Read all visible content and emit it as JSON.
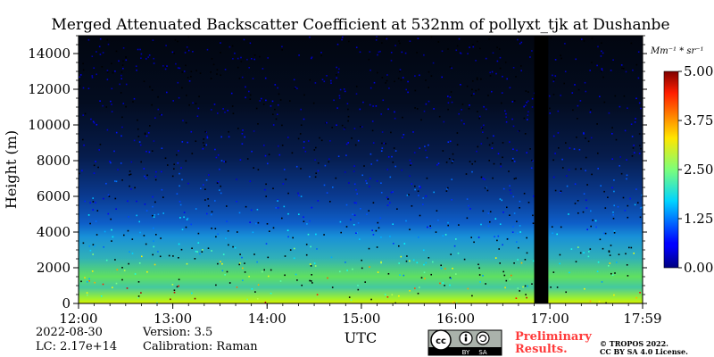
{
  "chart_data": {
    "type": "heatmap",
    "title": "Merged Attenuated Backscatter Coefficient at 532nm of pollyxt_tjk at Dushanbe",
    "xlabel": "UTC",
    "ylabel": "Height (m)",
    "x_range": [
      "12:00",
      "17:59"
    ],
    "x_ticks": [
      "12:00",
      "13:00",
      "14:00",
      "15:00",
      "16:00",
      "17:00",
      "17:59"
    ],
    "ylim": [
      0,
      15000
    ],
    "y_ticks": [
      0,
      2000,
      4000,
      6000,
      8000,
      10000,
      12000,
      14000
    ],
    "colorbar": {
      "unit": "Mm⁻¹ * sr⁻¹",
      "range": [
        0.0,
        5.0
      ],
      "ticks": [
        "0.00",
        "1.25",
        "2.50",
        "3.75",
        "5.00"
      ],
      "colormap": "jet"
    },
    "data_gap": {
      "start": "16:50",
      "end": "16:59"
    },
    "profile_summary": [
      {
        "height_m": 250,
        "value": 2.9
      },
      {
        "height_m": 800,
        "value": 2.4
      },
      {
        "height_m": 1500,
        "value": 2.0
      },
      {
        "height_m": 2500,
        "value": 1.8
      },
      {
        "height_m": 3500,
        "value": 1.1
      },
      {
        "height_m": 5000,
        "value": 0.9
      },
      {
        "height_m": 7000,
        "value": 0.6
      },
      {
        "height_m": 10000,
        "value": 0.35
      },
      {
        "height_m": 14000,
        "value": 0.2
      }
    ]
  },
  "info": {
    "date": "2022-08-30",
    "lc": "LC: 2.17e+14",
    "version": "Version: 3.5",
    "calibration": "Calibration: Raman",
    "preliminary_line1": "Preliminary",
    "preliminary_line2": "Results.",
    "copyright_line1": "© TROPOS 2022.",
    "copyright_line2": "CC BY SA 4.0 License."
  },
  "license_badge": {
    "by": "BY",
    "sa": "SA"
  }
}
